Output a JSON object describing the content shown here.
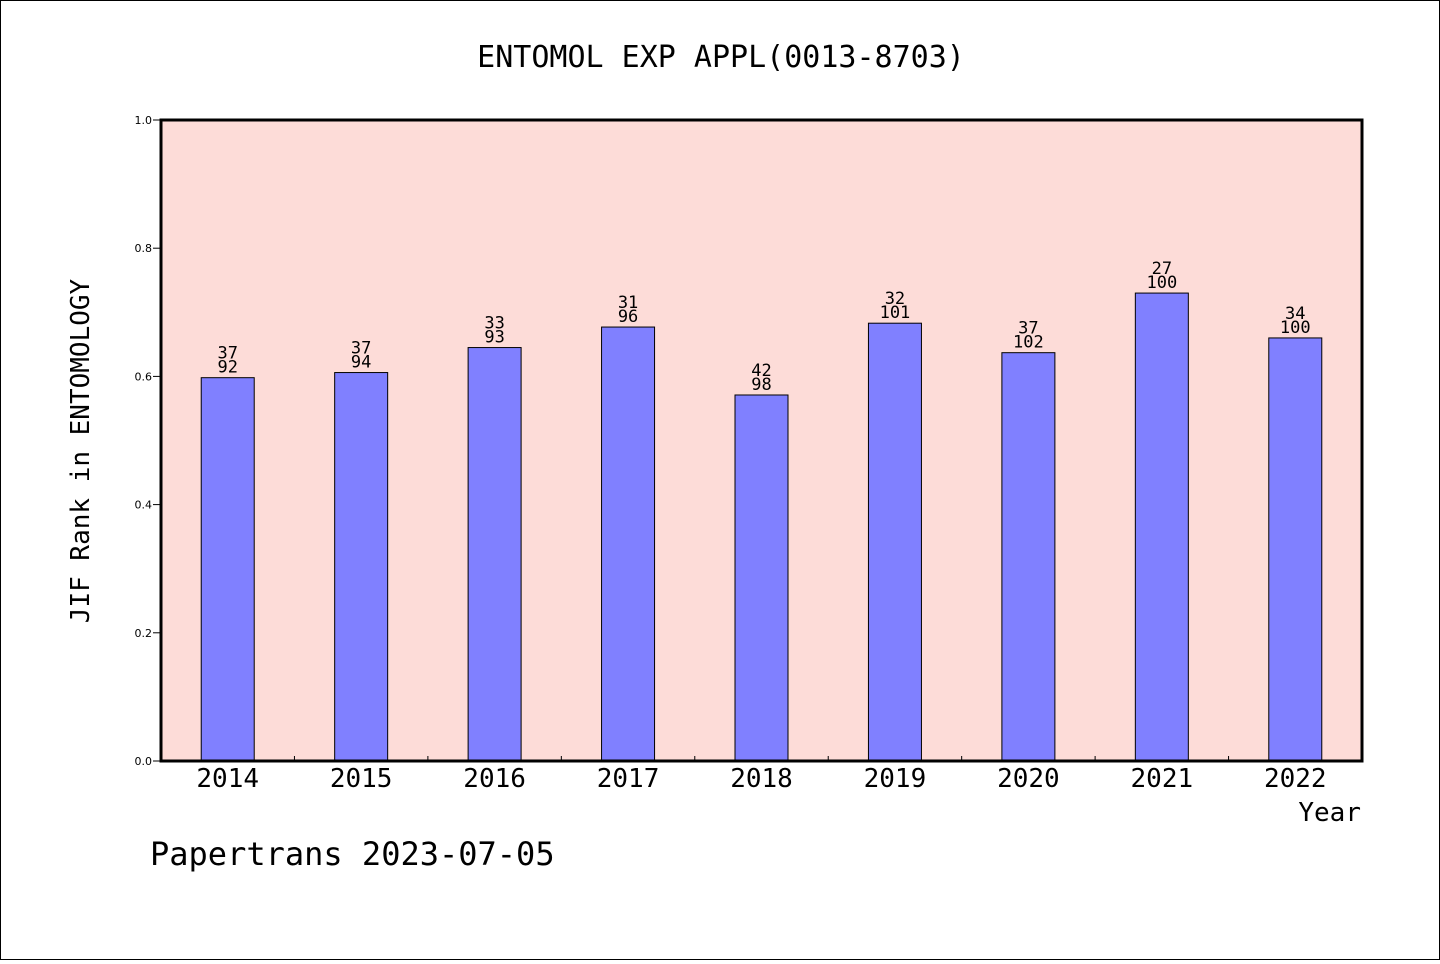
{
  "chart_data": {
    "type": "bar",
    "title": "ENTOMOL EXP APPL(0013-8703)",
    "xlabel": "Year",
    "ylabel": "JIF Rank in ENTOMOLOGY",
    "ylim": [
      0.0,
      1.0
    ],
    "yticks": [
      "0.0",
      "0.2",
      "0.4",
      "0.6",
      "0.8",
      "1.0"
    ],
    "categories": [
      "2014",
      "2015",
      "2016",
      "2017",
      "2018",
      "2019",
      "2020",
      "2021",
      "2022"
    ],
    "values": [
      0.598,
      0.606,
      0.645,
      0.677,
      0.571,
      0.683,
      0.637,
      0.73,
      0.66
    ],
    "rank": [
      "37",
      "37",
      "33",
      "31",
      "42",
      "32",
      "37",
      "27",
      "34"
    ],
    "total": [
      "92",
      "94",
      "93",
      "96",
      "98",
      "101",
      "102",
      "100",
      "100"
    ],
    "grid": false,
    "legend": "none",
    "colors": {
      "plot_background": "#fddcd8",
      "bar_fill": "#8080ff",
      "bar_stroke": "#000000",
      "axis": "#000000"
    }
  },
  "footer": {
    "text": "Papertrans 2023-07-05"
  }
}
